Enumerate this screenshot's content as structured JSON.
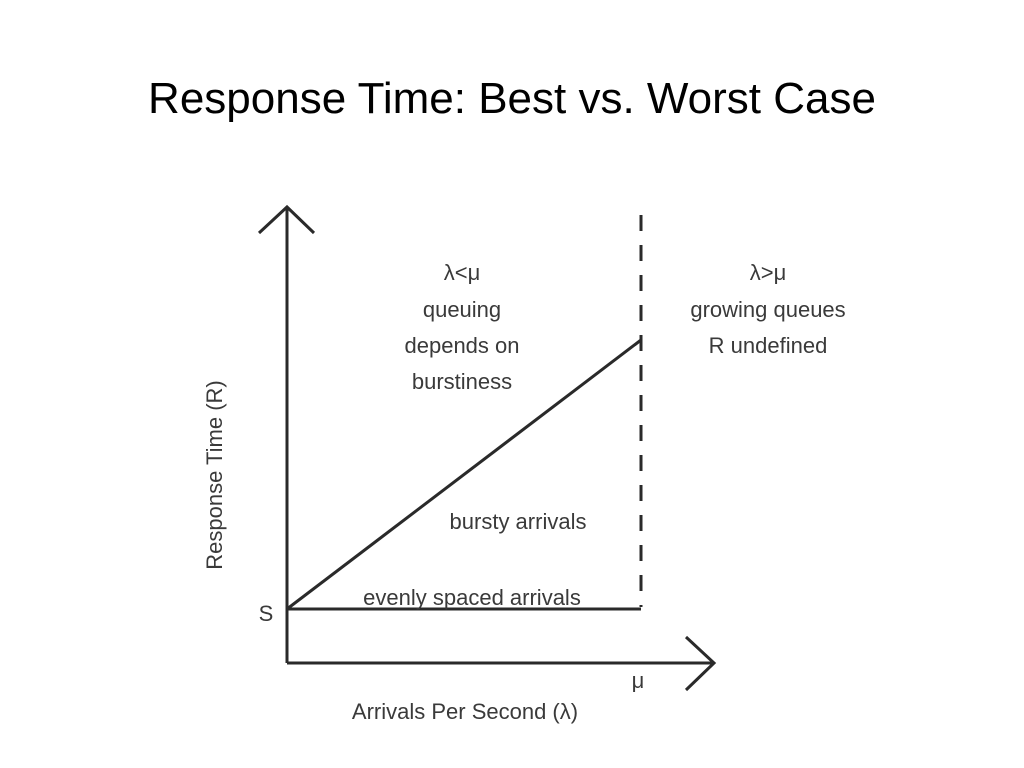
{
  "title": "Response Time: Best vs. Worst Case",
  "diagram": {
    "y_axis_label": "Response Time (R)",
    "x_axis_label": "Arrivals Per Second (λ)",
    "y_marker": "S",
    "x_marker": "μ",
    "left_region": [
      "λ<μ",
      "queuing",
      "depends on",
      "burstiness"
    ],
    "right_region": [
      "λ>μ",
      "growing queues",
      "R undefined"
    ],
    "bursty_label": "bursty arrivals",
    "even_label": "evenly spaced arrivals"
  }
}
